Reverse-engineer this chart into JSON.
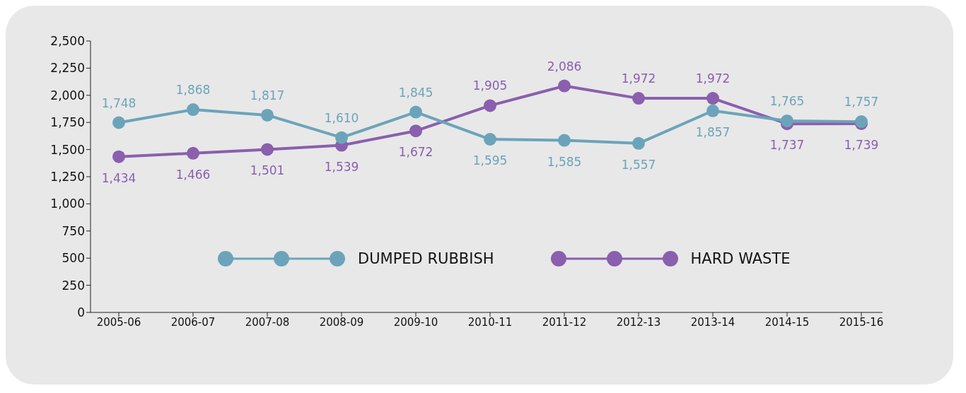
{
  "chart_data": {
    "type": "line",
    "categories": [
      "2005-06",
      "2006-07",
      "2007-08",
      "2008-09",
      "2009-10",
      "2010-11",
      "2011-12",
      "2012-13",
      "2013-14",
      "2014-15",
      "2015-16"
    ],
    "series": [
      {
        "name": "DUMPED RUBBISH",
        "color": "#6ba4ba",
        "values": [
          1748,
          1868,
          1817,
          1610,
          1845,
          1595,
          1585,
          1557,
          1857,
          1765,
          1757
        ],
        "value_labels": [
          "1,748",
          "1,868",
          "1,817",
          "1,610",
          "1,845",
          "1,595",
          "1,585",
          "1,557",
          "1,857",
          "1,765",
          "1,757"
        ]
      },
      {
        "name": "HARD WASTE",
        "color": "#8a5fae",
        "values": [
          1434,
          1466,
          1501,
          1539,
          1672,
          1905,
          2086,
          1972,
          1972,
          1737,
          1739
        ],
        "value_labels": [
          "1,434",
          "1,466",
          "1,501",
          "1,539",
          "1,672",
          "1,905",
          "2,086",
          "1,972",
          "1,972",
          "1,737",
          "1,739"
        ]
      }
    ],
    "ylim": [
      0,
      2500
    ],
    "yticks": [
      0,
      {
        "value": 250,
        "label": "250"
      },
      {
        "value": 500,
        "label": "500"
      },
      {
        "value": 750,
        "label": "750"
      },
      {
        "value": 1000,
        "label": "1,000"
      },
      {
        "value": 1250,
        "label": "1,250"
      },
      {
        "value": 1500,
        "label": "1,500"
      },
      {
        "value": 1750,
        "label": "1,750"
      },
      {
        "value": 2000,
        "label": "2,000"
      },
      {
        "value": 2250,
        "label": "2,250"
      },
      {
        "value": 2500,
        "label": "2,500"
      }
    ],
    "grid": false,
    "legend": "center",
    "marker": "circle",
    "line_style": "solid"
  }
}
